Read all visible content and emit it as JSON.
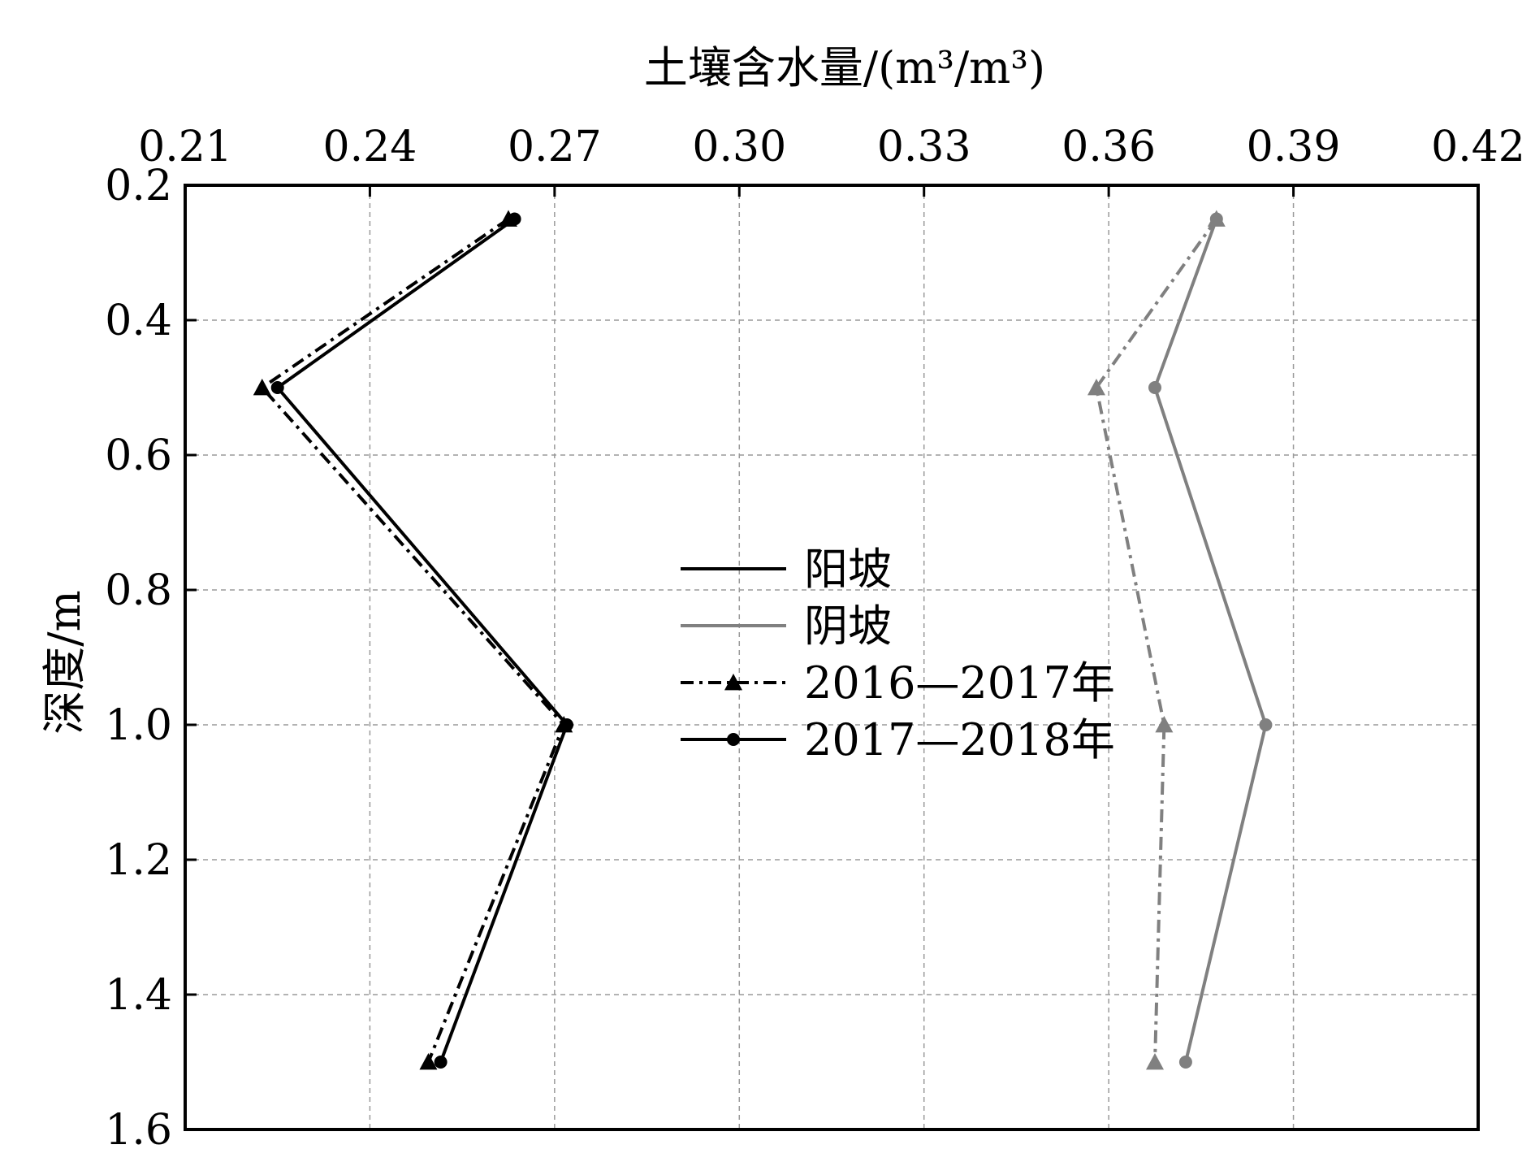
{
  "chart_data": {
    "type": "line",
    "xlabel": "土壤含水量/(m³/m³)",
    "ylabel": "深度/m",
    "x_axis_position": "top",
    "y_axis_inverted": true,
    "xlim": [
      0.21,
      0.42
    ],
    "ylim": [
      0.2,
      1.6
    ],
    "x_ticks": [
      "0.21",
      "0.24",
      "0.27",
      "0.30",
      "0.33",
      "0.36",
      "0.39",
      "0.42"
    ],
    "y_ticks": [
      "0.2",
      "0.4",
      "0.6",
      "0.8",
      "1.0",
      "1.2",
      "1.4",
      "1.6"
    ],
    "grid": true,
    "legend_position": "center",
    "legend": [
      {
        "label": "阳坡",
        "color": "#000000",
        "dash": "solid",
        "marker": "none"
      },
      {
        "label": "阴坡",
        "color": "#808080",
        "dash": "solid",
        "marker": "none"
      },
      {
        "label": "2016—2017年",
        "color": "#000000",
        "dash": "dashdot",
        "marker": "triangle"
      },
      {
        "label": "2017—2018年",
        "color": "#000000",
        "dash": "solid",
        "marker": "circle"
      }
    ],
    "series": [
      {
        "slope": "阳坡",
        "period": "2016—2017年",
        "color": "#000000",
        "dash": "dashdot",
        "marker": "triangle",
        "depth": [
          0.25,
          0.5,
          1.0,
          1.5
        ],
        "moisture": [
          0.2625,
          0.2225,
          0.2715,
          0.2495
        ]
      },
      {
        "slope": "阳坡",
        "period": "2017—2018年",
        "color": "#000000",
        "dash": "solid",
        "marker": "circle",
        "depth": [
          0.25,
          0.5,
          1.0,
          1.5
        ],
        "moisture": [
          0.2635,
          0.225,
          0.272,
          0.2515
        ]
      },
      {
        "slope": "阴坡",
        "period": "2016—2017年",
        "color": "#808080",
        "dash": "dashdot",
        "marker": "triangle",
        "depth": [
          0.25,
          0.5,
          1.0,
          1.5
        ],
        "moisture": [
          0.3775,
          0.358,
          0.369,
          0.3675
        ]
      },
      {
        "slope": "阴坡",
        "period": "2017—2018年",
        "color": "#808080",
        "dash": "solid",
        "marker": "circle",
        "depth": [
          0.25,
          0.5,
          1.0,
          1.5
        ],
        "moisture": [
          0.3775,
          0.3675,
          0.3855,
          0.3725
        ]
      }
    ]
  }
}
